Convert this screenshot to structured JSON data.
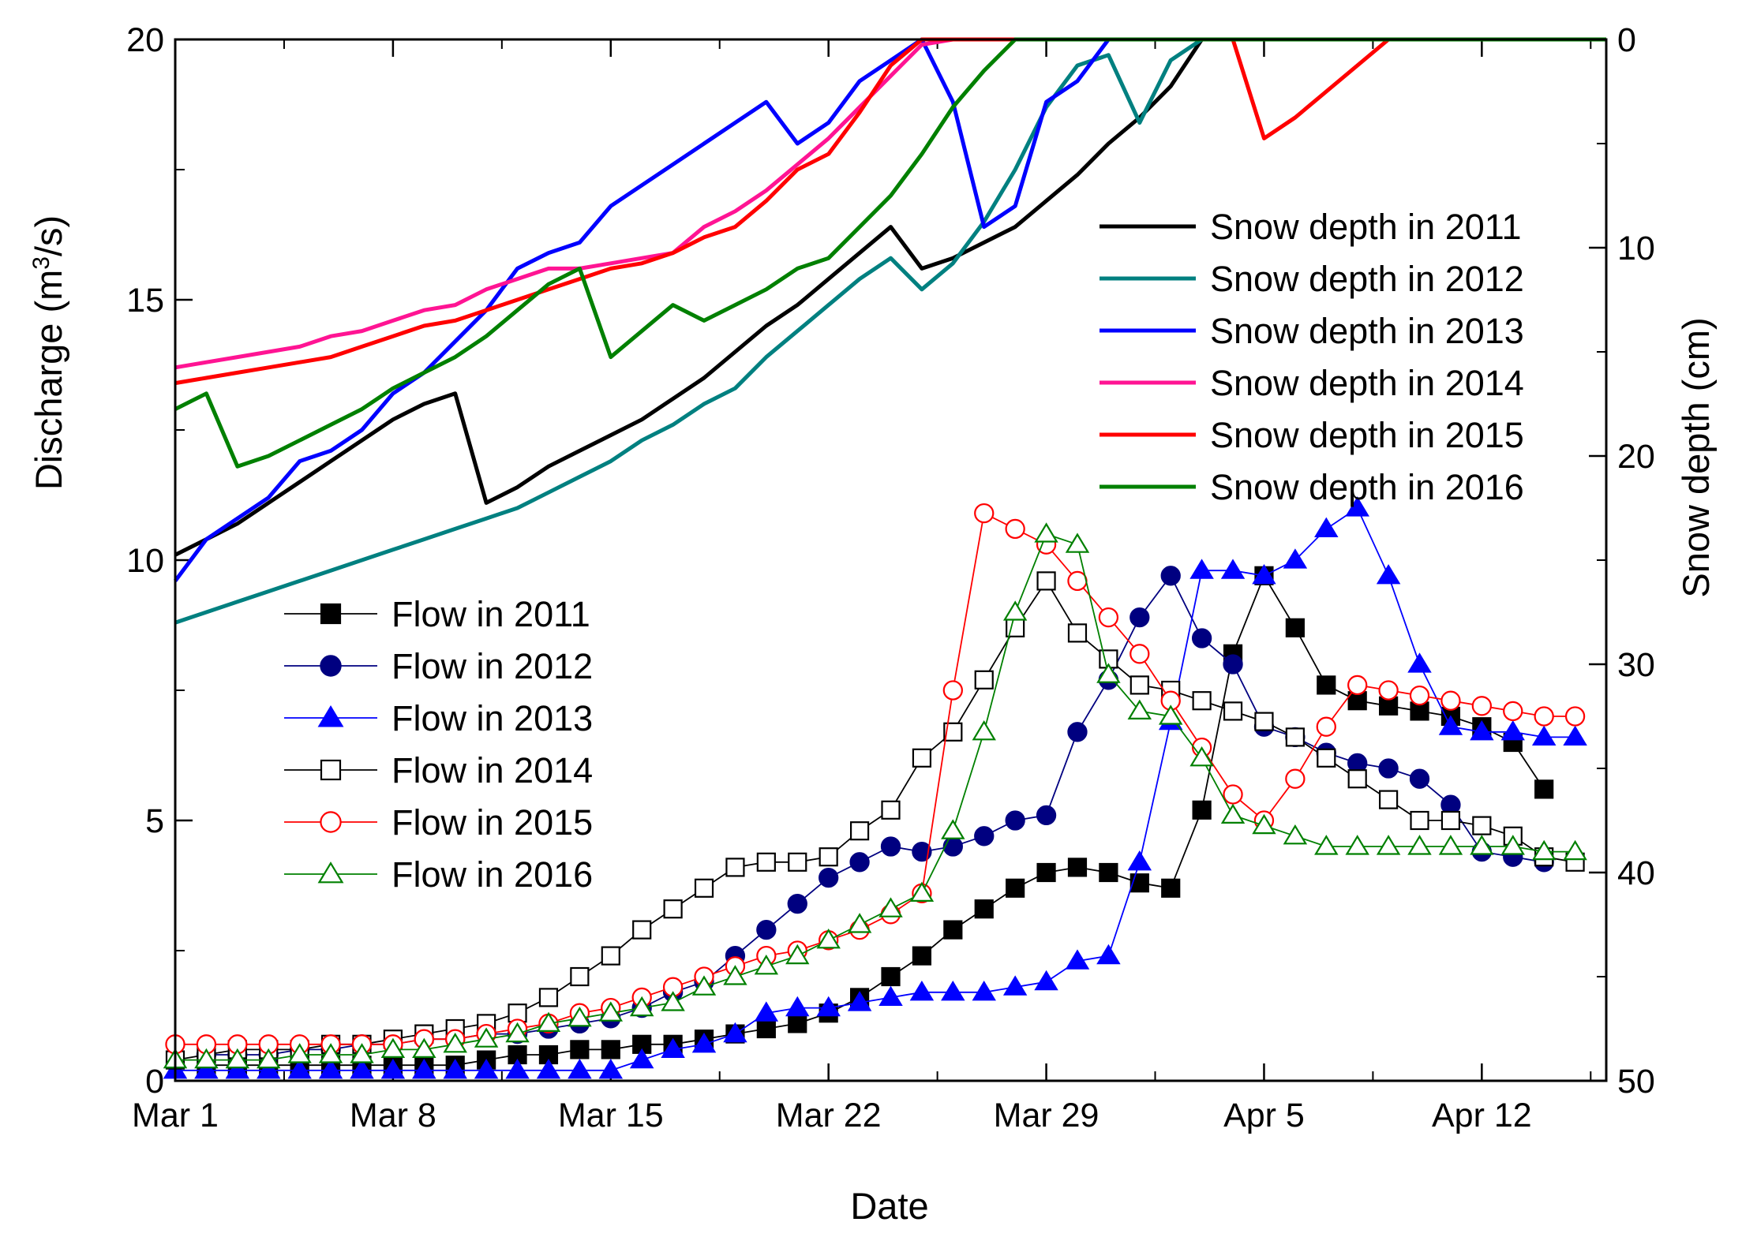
{
  "chart_data": {
    "type": "line",
    "xlabel": "Date",
    "ylabel": "Discharge (m",
    "ylabel_sup": "3",
    "ylabel_tail": "/s)",
    "y2label": "Snow depth (cm)",
    "xlim": [
      0,
      46
    ],
    "ylim": [
      0,
      20
    ],
    "y2lim": [
      0,
      50
    ],
    "y2_inverted": true,
    "x_ticks": [
      {
        "x": 0,
        "label": "Mar 1"
      },
      {
        "x": 7,
        "label": "Mar 8"
      },
      {
        "x": 14,
        "label": "Mar 15"
      },
      {
        "x": 21,
        "label": "Mar 22"
      },
      {
        "x": 28,
        "label": "Mar 29"
      },
      {
        "x": 35,
        "label": "Apr 5"
      },
      {
        "x": 42,
        "label": "Apr 12"
      }
    ],
    "y_ticks": [
      {
        "v": 0,
        "label": "0"
      },
      {
        "v": 5,
        "label": "5"
      },
      {
        "v": 10,
        "label": "10"
      },
      {
        "v": 15,
        "label": "15"
      },
      {
        "v": 20,
        "label": "20"
      }
    ],
    "y2_ticks": [
      {
        "v": 0,
        "label": "0"
      },
      {
        "v": 10,
        "label": "10"
      },
      {
        "v": 20,
        "label": "20"
      },
      {
        "v": 30,
        "label": "30"
      },
      {
        "v": 40,
        "label": "40"
      },
      {
        "v": 50,
        "label": "50"
      }
    ],
    "snow_legend_position": "top-right",
    "flow_legend_position": "middle-left",
    "snow_series": [
      {
        "name": "Snow depth in 2011",
        "color": "#000000",
        "x": [
          0,
          1,
          2,
          3,
          4,
          5,
          6,
          7,
          8,
          9,
          10,
          11,
          12,
          13,
          14,
          15,
          16,
          17,
          18,
          19,
          20,
          21,
          22,
          23,
          24,
          25,
          26,
          27,
          28,
          29,
          30,
          31,
          32,
          33,
          34,
          35,
          36,
          37,
          38,
          39,
          40,
          41,
          42,
          43,
          44,
          45,
          46
        ],
        "values": [
          10.1,
          10.4,
          10.7,
          11.1,
          11.5,
          11.9,
          12.3,
          12.7,
          13.0,
          13.2,
          11.1,
          11.4,
          11.8,
          12.1,
          12.4,
          12.7,
          13.1,
          13.5,
          14.0,
          14.5,
          14.9,
          15.4,
          15.9,
          16.4,
          15.6,
          15.8,
          16.1,
          16.4,
          16.9,
          17.4,
          18.0,
          18.5,
          19.1,
          20,
          20,
          20,
          20,
          20,
          20,
          20,
          20,
          20,
          20,
          20,
          20,
          20,
          20
        ]
      },
      {
        "name": "Snow depth in 2012",
        "color": "#008080",
        "x": [
          0,
          1,
          2,
          3,
          4,
          5,
          6,
          7,
          8,
          9,
          10,
          11,
          12,
          13,
          14,
          15,
          16,
          17,
          18,
          19,
          20,
          21,
          22,
          23,
          24,
          25,
          26,
          27,
          28,
          29,
          30,
          31,
          32,
          33,
          34,
          35,
          36,
          37,
          38,
          39,
          40,
          41,
          42,
          43,
          44,
          45,
          46
        ],
        "values": [
          8.8,
          9.0,
          9.2,
          9.4,
          9.6,
          9.8,
          10.0,
          10.2,
          10.4,
          10.6,
          10.8,
          11.0,
          11.3,
          11.6,
          11.9,
          12.3,
          12.6,
          13.0,
          13.3,
          13.9,
          14.4,
          14.9,
          15.4,
          15.8,
          15.2,
          15.7,
          16.5,
          17.5,
          18.7,
          19.5,
          19.7,
          18.4,
          19.6,
          20,
          20,
          20,
          20,
          20,
          20,
          20,
          20,
          20,
          20,
          20,
          20,
          20,
          20
        ]
      },
      {
        "name": "Snow depth in 2013",
        "color": "#0000ff",
        "x": [
          0,
          1,
          2,
          3,
          4,
          5,
          6,
          7,
          8,
          9,
          10,
          11,
          12,
          13,
          14,
          15,
          16,
          17,
          18,
          19,
          20,
          21,
          22,
          23,
          24,
          25,
          26,
          27,
          28,
          29,
          30,
          31,
          32,
          33,
          34,
          35,
          36,
          37,
          38,
          39,
          40,
          41,
          42,
          43,
          44,
          45,
          46
        ],
        "values": [
          9.6,
          10.4,
          10.8,
          11.2,
          11.9,
          12.1,
          12.5,
          13.2,
          13.6,
          14.2,
          14.8,
          15.6,
          15.9,
          16.1,
          16.8,
          17.2,
          17.6,
          18.0,
          18.4,
          18.8,
          18.0,
          18.4,
          19.2,
          19.6,
          20,
          18.8,
          16.4,
          16.8,
          18.8,
          19.2,
          20,
          20,
          20,
          20,
          20,
          20,
          20,
          20,
          20,
          20,
          20,
          20,
          20,
          20,
          20,
          20,
          20
        ]
      },
      {
        "name": "Snow depth in 2014",
        "color": "#ff1493",
        "x": [
          0,
          1,
          2,
          3,
          4,
          5,
          6,
          7,
          8,
          9,
          10,
          11,
          12,
          13,
          14,
          15,
          16,
          17,
          18,
          19,
          20,
          21,
          22,
          23,
          24,
          25,
          26,
          27,
          28,
          29,
          30,
          31,
          32,
          33,
          34,
          35,
          36,
          37,
          38,
          39,
          40,
          41,
          42,
          43,
          44,
          45,
          46
        ],
        "values": [
          13.7,
          13.8,
          13.9,
          14.0,
          14.1,
          14.3,
          14.4,
          14.6,
          14.8,
          14.9,
          15.2,
          15.4,
          15.6,
          15.6,
          15.7,
          15.8,
          15.9,
          16.4,
          16.7,
          17.1,
          17.6,
          18.1,
          18.7,
          19.3,
          19.9,
          20,
          20,
          20,
          20,
          20,
          20,
          20,
          20,
          20,
          20,
          20,
          20,
          20,
          20,
          20,
          20,
          20,
          20,
          20,
          20,
          20,
          20
        ]
      },
      {
        "name": "Snow depth in 2015",
        "color": "#ff0000",
        "x": [
          0,
          1,
          2,
          3,
          4,
          5,
          6,
          7,
          8,
          9,
          10,
          11,
          12,
          13,
          14,
          15,
          16,
          17,
          18,
          19,
          20,
          21,
          22,
          23,
          24,
          25,
          26,
          27,
          28,
          29,
          30,
          31,
          32,
          33,
          34,
          35,
          36,
          37,
          38,
          39,
          40,
          41,
          42,
          43,
          44,
          45,
          46
        ],
        "values": [
          13.4,
          13.5,
          13.6,
          13.7,
          13.8,
          13.9,
          14.1,
          14.3,
          14.5,
          14.6,
          14.8,
          15.0,
          15.2,
          15.4,
          15.6,
          15.7,
          15.9,
          16.2,
          16.4,
          16.9,
          17.5,
          17.8,
          18.6,
          19.5,
          20,
          20,
          20,
          20,
          20,
          20,
          20,
          20,
          20,
          20,
          20,
          18.1,
          18.5,
          19.0,
          19.5,
          20,
          20,
          20,
          20,
          20,
          20,
          20,
          20
        ]
      },
      {
        "name": "Snow depth in 2016",
        "color": "#008000",
        "x": [
          0,
          1,
          2,
          3,
          4,
          5,
          6,
          7,
          8,
          9,
          10,
          11,
          12,
          13,
          14,
          15,
          16,
          17,
          18,
          19,
          20,
          21,
          22,
          23,
          24,
          25,
          26,
          27,
          28,
          29,
          30,
          31,
          32,
          33,
          34,
          35,
          36,
          37,
          38,
          39,
          40,
          41,
          42,
          43,
          44,
          45,
          46
        ],
        "values": [
          12.9,
          13.2,
          11.8,
          12.0,
          12.3,
          12.6,
          12.9,
          13.3,
          13.6,
          13.9,
          14.3,
          14.8,
          15.3,
          15.6,
          13.9,
          14.4,
          14.9,
          14.6,
          14.9,
          15.2,
          15.6,
          15.8,
          16.4,
          17.0,
          17.8,
          18.7,
          19.4,
          20,
          20,
          20,
          20,
          20,
          20,
          20,
          20,
          20,
          20,
          20,
          20,
          20,
          20,
          20,
          20,
          20,
          20,
          20,
          20
        ]
      }
    ],
    "flow_series": [
      {
        "name": "Flow in 2011",
        "color": "#000000",
        "marker": "square",
        "filled": true,
        "x": [
          1,
          2,
          3,
          4,
          5,
          6,
          7,
          8,
          9,
          10,
          11,
          12,
          13,
          14,
          15,
          16,
          17,
          18,
          19,
          20,
          21,
          22,
          23,
          24,
          25,
          26,
          27,
          28,
          29,
          30,
          31,
          32,
          33,
          34,
          35,
          36,
          37,
          38,
          39,
          40,
          41,
          42,
          43,
          44,
          45,
          46
        ],
        "values": [
          0.3,
          0.3,
          0.3,
          0.3,
          0.3,
          0.3,
          0.3,
          0.3,
          0.3,
          0.4,
          0.5,
          0.5,
          0.6,
          0.6,
          0.7,
          0.7,
          0.8,
          0.9,
          1.0,
          1.1,
          1.3,
          1.6,
          2.0,
          2.4,
          2.9,
          3.3,
          3.7,
          4.0,
          4.1,
          4.0,
          3.8,
          3.7,
          5.2,
          8.2,
          9.7,
          8.7,
          7.6,
          7.3,
          7.2,
          7.1,
          7.0,
          6.8,
          6.5,
          5.6,
          null,
          null
        ]
      },
      {
        "name": "Flow in 2012",
        "color": "#000080",
        "marker": "circle",
        "filled": true,
        "x": [
          1,
          2,
          3,
          4,
          5,
          6,
          7,
          8,
          9,
          10,
          11,
          12,
          13,
          14,
          15,
          16,
          17,
          18,
          19,
          20,
          21,
          22,
          23,
          24,
          25,
          26,
          27,
          28,
          29,
          30,
          31,
          32,
          33,
          34,
          35,
          36,
          37,
          38,
          39,
          40,
          41,
          42,
          43,
          44,
          45,
          46
        ],
        "values": [
          0.5,
          0.5,
          0.5,
          0.6,
          0.6,
          0.7,
          0.7,
          0.8,
          0.8,
          0.9,
          0.9,
          1.0,
          1.1,
          1.2,
          1.4,
          1.7,
          1.9,
          2.4,
          2.9,
          3.4,
          3.9,
          4.2,
          4.5,
          4.4,
          4.5,
          4.7,
          5.0,
          5.1,
          6.7,
          7.7,
          8.9,
          9.7,
          8.5,
          8.0,
          6.8,
          6.6,
          6.3,
          6.1,
          6.0,
          5.8,
          5.3,
          4.4,
          4.3,
          4.2,
          null,
          null
        ]
      },
      {
        "name": "Flow in 2013",
        "color": "#0000ff",
        "marker": "triangle",
        "filled": true,
        "x": [
          0,
          1,
          2,
          3,
          4,
          5,
          6,
          7,
          8,
          9,
          10,
          11,
          12,
          13,
          14,
          15,
          16,
          17,
          18,
          19,
          20,
          21,
          22,
          23,
          24,
          25,
          26,
          27,
          28,
          29,
          30,
          31,
          32,
          33,
          34,
          35,
          36,
          37,
          38,
          39,
          40,
          41,
          42,
          43,
          44,
          45
        ],
        "values": [
          0.2,
          0.2,
          0.2,
          0.2,
          0.2,
          0.2,
          0.2,
          0.2,
          0.2,
          0.2,
          0.2,
          0.2,
          0.2,
          0.2,
          0.2,
          0.4,
          0.6,
          0.7,
          0.9,
          1.3,
          1.4,
          1.4,
          1.5,
          1.6,
          1.7,
          1.7,
          1.7,
          1.8,
          1.9,
          2.3,
          2.4,
          4.2,
          6.9,
          9.8,
          9.8,
          9.7,
          10.0,
          10.6,
          11.0,
          9.7,
          8.0,
          6.8,
          6.7,
          6.7,
          6.6,
          6.6
        ]
      },
      {
        "name": "Flow in 2014",
        "color": "#000000",
        "marker": "square",
        "filled": false,
        "x": [
          0,
          1,
          2,
          3,
          4,
          5,
          6,
          7,
          8,
          9,
          10,
          11,
          12,
          13,
          14,
          15,
          16,
          17,
          18,
          19,
          20,
          21,
          22,
          23,
          24,
          25,
          26,
          27,
          28,
          29,
          30,
          31,
          32,
          33,
          34,
          35,
          36,
          37,
          38,
          39,
          40,
          41,
          42,
          43,
          44,
          45,
          46
        ],
        "values": [
          0.4,
          0.5,
          0.6,
          0.6,
          0.6,
          0.7,
          0.7,
          0.8,
          0.9,
          1.0,
          1.1,
          1.3,
          1.6,
          2.0,
          2.4,
          2.9,
          3.3,
          3.7,
          4.1,
          4.2,
          4.2,
          4.3,
          4.8,
          5.2,
          6.2,
          6.7,
          7.7,
          8.7,
          9.6,
          8.6,
          8.1,
          7.6,
          7.5,
          7.3,
          7.1,
          6.9,
          6.6,
          6.2,
          5.8,
          5.4,
          5.0,
          5.0,
          4.9,
          4.7,
          4.3,
          4.2,
          null
        ]
      },
      {
        "name": "Flow in 2015",
        "color": "#ff0000",
        "marker": "circle",
        "filled": false,
        "x": [
          0,
          1,
          2,
          3,
          4,
          5,
          6,
          7,
          8,
          9,
          10,
          11,
          12,
          13,
          14,
          15,
          16,
          17,
          18,
          19,
          20,
          21,
          22,
          23,
          24,
          25,
          26,
          27,
          28,
          29,
          30,
          31,
          32,
          33,
          34,
          35,
          36,
          37,
          38,
          39,
          40,
          41,
          42,
          43,
          44,
          45,
          46
        ],
        "values": [
          0.7,
          0.7,
          0.7,
          0.7,
          0.7,
          0.7,
          0.7,
          0.7,
          0.8,
          0.8,
          0.9,
          1.0,
          1.1,
          1.3,
          1.4,
          1.6,
          1.8,
          2.0,
          2.2,
          2.4,
          2.5,
          2.7,
          2.9,
          3.2,
          3.6,
          7.5,
          10.9,
          10.6,
          10.3,
          9.6,
          8.9,
          8.2,
          7.3,
          6.4,
          5.5,
          5.0,
          5.8,
          6.8,
          7.6,
          7.5,
          7.4,
          7.3,
          7.2,
          7.1,
          7.0,
          7.0,
          null
        ]
      },
      {
        "name": "Flow in 2016",
        "color": "#008000",
        "marker": "triangle",
        "filled": false,
        "x": [
          0,
          1,
          2,
          3,
          4,
          5,
          6,
          7,
          8,
          9,
          10,
          11,
          12,
          13,
          14,
          15,
          16,
          17,
          18,
          19,
          20,
          21,
          22,
          23,
          24,
          25,
          26,
          27,
          28,
          29,
          30,
          31,
          32,
          33,
          34,
          35,
          36,
          37,
          38,
          39,
          40,
          41,
          42,
          43,
          44,
          45,
          46
        ],
        "values": [
          0.4,
          0.4,
          0.4,
          0.4,
          0.5,
          0.5,
          0.5,
          0.6,
          0.6,
          0.7,
          0.8,
          0.9,
          1.1,
          1.2,
          1.3,
          1.4,
          1.5,
          1.8,
          2.0,
          2.2,
          2.4,
          2.7,
          3.0,
          3.3,
          3.6,
          4.8,
          6.7,
          9.0,
          10.5,
          10.3,
          7.8,
          7.1,
          7.0,
          6.2,
          5.1,
          4.9,
          4.7,
          4.5,
          4.5,
          4.5,
          4.5,
          4.5,
          4.5,
          4.5,
          4.4,
          4.4,
          null
        ]
      }
    ]
  }
}
